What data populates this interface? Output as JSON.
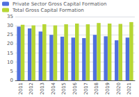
{
  "chart_data": {
    "type": "bar",
    "categories": [
      "2011",
      "2012",
      "2013",
      "2014",
      "2015",
      "2016",
      "2017",
      "2018",
      "2019",
      "2020",
      "2021"
    ],
    "series": [
      {
        "name": "Private Sector Gross Capital Formation",
        "values": [
          29.5,
          28.5,
          26.8,
          25.0,
          24.0,
          23.5,
          23.2,
          25.0,
          24.2,
          22.0,
          23.5
        ]
      },
      {
        "name": "Total Gross Capital Formation",
        "values": [
          30.5,
          30.2,
          30.8,
          30.2,
          30.8,
          31.2,
          30.8,
          31.5,
          31.2,
          31.0,
          32.0
        ]
      }
    ],
    "ylim": [
      0,
      35
    ],
    "yticks": [
      0,
      5,
      10,
      15,
      20,
      25,
      30,
      35
    ],
    "grid": true,
    "legend": "upper left"
  }
}
